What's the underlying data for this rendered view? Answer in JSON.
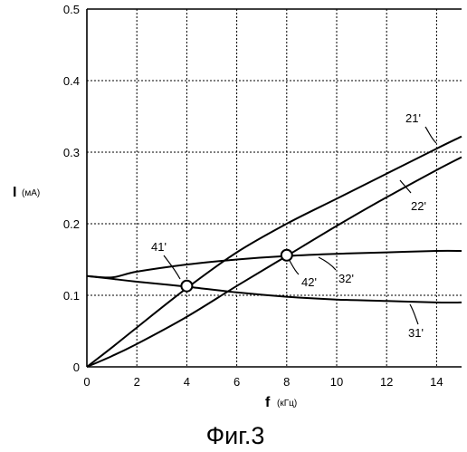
{
  "chart_data": {
    "type": "line",
    "xlim": [
      0,
      15
    ],
    "ylim": [
      0,
      0.5
    ],
    "x_ticks": [
      0,
      2,
      4,
      6,
      8,
      10,
      12,
      14
    ],
    "y_ticks": [
      0,
      0.1,
      0.2,
      0.3,
      0.4,
      0.5
    ],
    "x_tick_labels": [
      "0",
      "2",
      "4",
      "6",
      "8",
      "10",
      "12",
      "14"
    ],
    "y_tick_labels": [
      "0",
      "0.1",
      "0.2",
      "0.3",
      "0.4",
      "0.5"
    ],
    "grid": true,
    "xlabel": {
      "symbol": "f",
      "unit": "(кГц)"
    },
    "ylabel": {
      "symbol": "I",
      "unit": "(мА)"
    },
    "caption": "Фиг.3",
    "series": [
      {
        "label": "21'",
        "x": [
          0,
          1,
          2,
          4,
          6,
          8,
          10,
          12,
          14,
          15
        ],
        "y": [
          0,
          0.027,
          0.055,
          0.11,
          0.16,
          0.2,
          0.235,
          0.27,
          0.305,
          0.322
        ]
      },
      {
        "label": "22'",
        "x": [
          0,
          1,
          2,
          4,
          6,
          8,
          10,
          12,
          14,
          15
        ],
        "y": [
          0,
          0.015,
          0.032,
          0.07,
          0.113,
          0.155,
          0.197,
          0.237,
          0.275,
          0.293
        ]
      },
      {
        "label": "31'",
        "x": [
          0,
          1,
          2,
          4,
          6,
          8,
          10,
          12,
          14,
          15
        ],
        "y": [
          0.127,
          0.123,
          0.119,
          0.112,
          0.104,
          0.098,
          0.094,
          0.092,
          0.09,
          0.09
        ]
      },
      {
        "label": "32'",
        "x": [
          0,
          1,
          2,
          4,
          6,
          8,
          10,
          12,
          14,
          15
        ],
        "y": [
          0.127,
          0.125,
          0.133,
          0.143,
          0.15,
          0.155,
          0.158,
          0.16,
          0.162,
          0.162
        ]
      }
    ],
    "markers": [
      {
        "label": "41'",
        "x": 4,
        "y": 0.113
      },
      {
        "label": "42'",
        "x": 8,
        "y": 0.156
      }
    ]
  }
}
